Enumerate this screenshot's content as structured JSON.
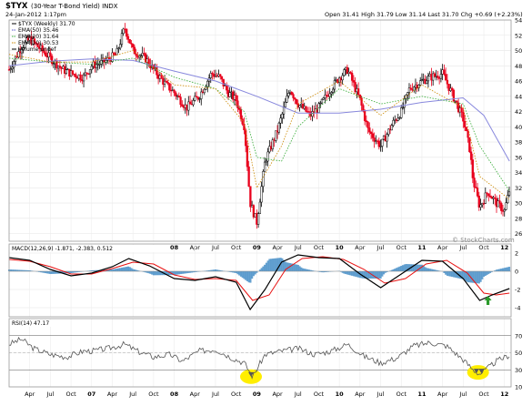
{
  "header": {
    "symbol": "$TYX",
    "description": "(30-Year T-Bond Yield) INDX",
    "date": "24-Jan-2012 1:17pm",
    "ohlc": "Open 31.41  High 31.79  Low 31.14  Last 31.70  Chg +0.69 (+2.23%)",
    "watermark": "© StockCharts.com"
  },
  "colors": {
    "up_bar": "#000000",
    "down_bar": "#e8001c",
    "ema50": "#8888dd",
    "ema20": "#33aa33",
    "ema10": "#cc8800",
    "macd_line": "#000000",
    "signal_line": "#e81010",
    "histogram": "#4a90c8",
    "rsi_line": "#555555",
    "highlight": "#ffee00",
    "arrow": "#2a9a2a"
  },
  "chart_data": [
    {
      "type": "candlestick",
      "legend": [
        "$TYX (Weekly) 31.70",
        "EMA(50) 35.46",
        "EMA(20) 31.64",
        "EMA(10) 30.53",
        "Volume undef"
      ],
      "ylim": [
        25,
        54
      ],
      "y_ticks": [
        "26",
        "28",
        "30",
        "32",
        "34",
        "36",
        "38",
        "40",
        "42",
        "44",
        "46",
        "48",
        "50",
        "52",
        "54"
      ],
      "x_ticks": [
        "Apr",
        "Jul",
        "Oct",
        "07",
        "Apr",
        "Jul",
        "Oct",
        "08",
        "Apr",
        "Jul",
        "Oct",
        "09",
        "Apr",
        "Jul",
        "Oct",
        "10",
        "Apr",
        "Jul",
        "Oct",
        "11",
        "Apr",
        "Jul",
        "Oct",
        "12"
      ],
      "series": [
        {
          "name": "$TYX (Weekly)",
          "x": [
            2006.0,
            2006.15,
            2006.25,
            2006.4,
            2006.5,
            2006.65,
            2006.75,
            2006.9,
            2007.0,
            2007.15,
            2007.3,
            2007.4,
            2007.5,
            2007.65,
            2007.75,
            2007.9,
            2008.0,
            2008.15,
            2008.3,
            2008.45,
            2008.55,
            2008.65,
            2008.75,
            2008.85,
            2008.92,
            2009.0,
            2009.1,
            2009.25,
            2009.4,
            2009.5,
            2009.65,
            2009.75,
            2009.9,
            2010.0,
            2010.1,
            2010.25,
            2010.35,
            2010.5,
            2010.65,
            2010.75,
            2010.85,
            2011.0,
            2011.1,
            2011.25,
            2011.4,
            2011.5,
            2011.58,
            2011.62,
            2011.7,
            2011.8,
            2011.9,
            2012.0,
            2012.06
          ],
          "y": [
            47.5,
            50.5,
            51.5,
            50.0,
            49.0,
            47.5,
            47.0,
            46.5,
            48.0,
            48.5,
            49.5,
            53.0,
            50.0,
            49.0,
            47.5,
            45.5,
            44.5,
            42.5,
            44.0,
            47.0,
            46.5,
            44.5,
            43.5,
            40.0,
            30.0,
            27.5,
            35.5,
            39.5,
            45.0,
            43.0,
            41.5,
            42.5,
            45.0,
            46.5,
            47.5,
            43.5,
            39.5,
            37.5,
            40.5,
            42.0,
            45.0,
            46.0,
            46.5,
            47.0,
            43.5,
            41.0,
            37.0,
            33.0,
            29.5,
            31.5,
            30.0,
            29.0,
            31.7
          ]
        },
        {
          "name": "EMA(50)",
          "x": [
            2006.0,
            2006.5,
            2007.0,
            2007.5,
            2008.0,
            2008.5,
            2009.0,
            2009.5,
            2010.0,
            2010.5,
            2011.0,
            2011.5,
            2011.75,
            2012.06
          ],
          "y": [
            48.0,
            48.6,
            48.9,
            48.7,
            47.3,
            46.0,
            44.0,
            41.8,
            41.8,
            42.3,
            43.2,
            43.8,
            41.5,
            35.5
          ]
        },
        {
          "name": "EMA(20)",
          "x": [
            2006.0,
            2006.5,
            2007.0,
            2007.5,
            2008.0,
            2008.5,
            2008.85,
            2009.0,
            2009.3,
            2009.5,
            2010.0,
            2010.5,
            2011.0,
            2011.5,
            2011.7,
            2012.06
          ],
          "y": [
            49.0,
            48.5,
            48.2,
            49.0,
            46.5,
            45.0,
            42.0,
            36.0,
            35.5,
            40.0,
            45.0,
            43.0,
            44.0,
            43.0,
            37.5,
            31.6
          ]
        },
        {
          "name": "EMA(10)",
          "x": [
            2006.0,
            2006.5,
            2007.0,
            2007.5,
            2008.0,
            2008.5,
            2008.85,
            2009.0,
            2009.3,
            2009.5,
            2010.0,
            2010.5,
            2011.0,
            2011.5,
            2011.7,
            2012.06
          ],
          "y": [
            49.5,
            48.5,
            48.5,
            50.0,
            45.5,
            45.0,
            40.5,
            32.0,
            37.5,
            43.0,
            46.0,
            41.5,
            45.5,
            42.5,
            33.5,
            30.5
          ]
        }
      ]
    },
    {
      "type": "line",
      "legend": "MACD(12,26,9) -1.871, -2.383, 0.512",
      "ylim": [
        -5,
        3
      ],
      "y_ticks": [
        "2",
        "0",
        "-2",
        "-4"
      ],
      "series": [
        {
          "name": "MACD",
          "x": [
            2006.0,
            2006.25,
            2006.5,
            2006.75,
            2007.0,
            2007.25,
            2007.45,
            2007.7,
            2008.0,
            2008.25,
            2008.5,
            2008.75,
            2008.92,
            2009.1,
            2009.3,
            2009.5,
            2009.75,
            2010.0,
            2010.25,
            2010.5,
            2010.75,
            2011.0,
            2011.25,
            2011.5,
            2011.7,
            2011.85,
            2012.06
          ],
          "y": [
            1.5,
            1.2,
            0.2,
            -0.5,
            -0.2,
            0.5,
            1.4,
            0.6,
            -0.8,
            -1.0,
            -0.6,
            -1.2,
            -4.2,
            -2.0,
            1.0,
            1.8,
            1.5,
            1.4,
            -0.3,
            -1.8,
            -0.3,
            1.2,
            1.1,
            -0.8,
            -3.2,
            -2.6,
            -1.9
          ]
        },
        {
          "name": "Signal",
          "x": [
            2006.0,
            2006.25,
            2006.5,
            2006.75,
            2007.0,
            2007.25,
            2007.5,
            2007.75,
            2008.0,
            2008.25,
            2008.5,
            2008.75,
            2008.95,
            2009.15,
            2009.35,
            2009.55,
            2009.8,
            2010.05,
            2010.3,
            2010.55,
            2010.8,
            2011.05,
            2011.3,
            2011.55,
            2011.75,
            2011.9,
            2012.06
          ],
          "y": [
            1.3,
            1.1,
            0.5,
            -0.3,
            -0.3,
            0.3,
            1.0,
            0.8,
            -0.4,
            -0.9,
            -0.8,
            -1.0,
            -3.2,
            -2.6,
            0.2,
            1.4,
            1.6,
            1.3,
            0.2,
            -1.3,
            -0.8,
            0.8,
            1.2,
            -0.2,
            -2.4,
            -2.6,
            -2.4
          ]
        }
      ],
      "annotations": [
        "green up arrow"
      ]
    },
    {
      "type": "line",
      "legend": "RSI(14) 47.17",
      "ylim": [
        10,
        90
      ],
      "y_ticks": [
        "70",
        "50",
        "30",
        "10"
      ],
      "series": [
        {
          "name": "RSI(14)",
          "x": [
            2006.0,
            2006.15,
            2006.3,
            2006.5,
            2006.7,
            2006.9,
            2007.0,
            2007.2,
            2007.4,
            2007.55,
            2007.75,
            2007.95,
            2008.1,
            2008.3,
            2008.5,
            2008.7,
            2008.85,
            2008.95,
            2009.1,
            2009.3,
            2009.5,
            2009.7,
            2009.9,
            2010.1,
            2010.3,
            2010.5,
            2010.7,
            2010.9,
            2011.1,
            2011.3,
            2011.5,
            2011.62,
            2011.7,
            2011.8,
            2011.9,
            2012.06
          ],
          "y": [
            60,
            66,
            55,
            48,
            45,
            52,
            52,
            55,
            60,
            52,
            45,
            48,
            40,
            52,
            54,
            44,
            38,
            22,
            48,
            52,
            55,
            48,
            52,
            60,
            46,
            38,
            44,
            58,
            62,
            58,
            42,
            30,
            25,
            32,
            40,
            47.17
          ]
        }
      ],
      "annotations": [
        "yellow highlight at oversold dip late 2008",
        "yellow highlight at oversold dip Sep-Oct 2011"
      ]
    }
  ]
}
